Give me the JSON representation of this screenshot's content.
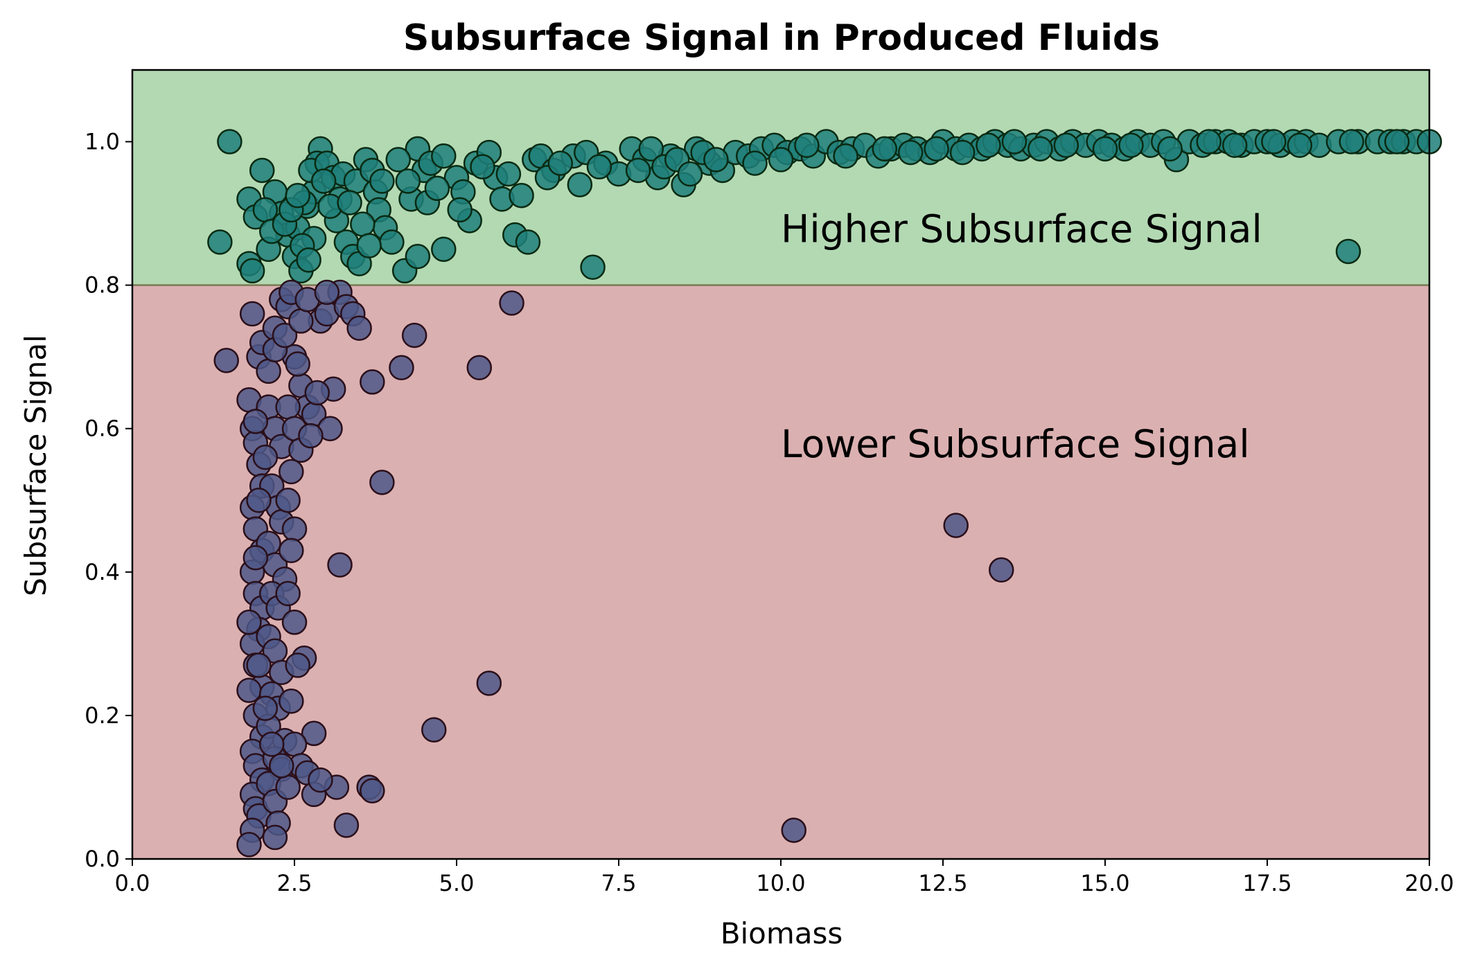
{
  "chart_data": {
    "type": "scatter",
    "title": "Subsurface Signal in Produced Fluids",
    "xlabel": "Biomass",
    "ylabel": "Subsurface Signal",
    "xlim": [
      0,
      20
    ],
    "ylim": [
      0,
      1.1
    ],
    "x_ticks": [
      "0.0",
      "2.5",
      "5.0",
      "7.5",
      "10.0",
      "12.5",
      "15.0",
      "17.5",
      "20.0"
    ],
    "y_ticks": [
      "0.0",
      "0.2",
      "0.4",
      "0.6",
      "0.8",
      "1.0"
    ],
    "threshold": 0.8,
    "grid": false,
    "regions": [
      {
        "label": "Higher Subsurface Signal",
        "y_from": 0.8,
        "y_to": 1.1,
        "color": "#b3d9b3",
        "label_x": 10.0,
        "label_y": 0.86
      },
      {
        "label": "Lower Subsurface Signal",
        "y_from": 0.0,
        "y_to": 0.8,
        "color": "#dbb0b1",
        "label_x": 10.0,
        "label_y": 0.56
      }
    ],
    "colors": {
      "high_fill": "#1f7f7a",
      "high_edge": "#0a2a12",
      "low_fill": "#4e5888",
      "low_edge": "#2a0f1a",
      "threshold_line": "#7a7a52"
    },
    "series": [
      {
        "group": "high",
        "points": [
          [
            1.5,
            1.0
          ],
          [
            1.35,
            0.86
          ],
          [
            2.0,
            0.96
          ],
          [
            1.8,
            0.92
          ],
          [
            1.9,
            0.895
          ],
          [
            2.1,
            0.85
          ],
          [
            1.8,
            0.83
          ],
          [
            1.85,
            0.82
          ],
          [
            2.2,
            0.93
          ],
          [
            2.3,
            0.9
          ],
          [
            2.4,
            0.87
          ],
          [
            2.5,
            0.84
          ],
          [
            2.6,
            0.82
          ],
          [
            2.55,
            0.88
          ],
          [
            2.7,
            0.91
          ],
          [
            2.8,
            0.93
          ],
          [
            2.9,
            0.99
          ],
          [
            2.85,
            0.97
          ],
          [
            2.75,
            0.96
          ],
          [
            3.0,
            0.97
          ],
          [
            3.1,
            0.95
          ],
          [
            3.2,
            0.92
          ],
          [
            3.15,
            0.89
          ],
          [
            3.3,
            0.86
          ],
          [
            3.4,
            0.84
          ],
          [
            3.5,
            0.83
          ],
          [
            2.65,
            0.915
          ],
          [
            2.8,
            0.865
          ],
          [
            3.05,
            0.91
          ],
          [
            3.25,
            0.955
          ],
          [
            3.45,
            0.945
          ],
          [
            3.6,
            0.975
          ],
          [
            3.7,
            0.96
          ],
          [
            3.75,
            0.93
          ],
          [
            3.8,
            0.905
          ],
          [
            3.9,
            0.88
          ],
          [
            4.0,
            0.86
          ],
          [
            4.2,
            0.82
          ],
          [
            4.4,
            0.84
          ],
          [
            4.8,
            0.85
          ],
          [
            4.3,
            0.92
          ],
          [
            4.5,
            0.96
          ],
          [
            4.4,
            0.99
          ],
          [
            4.6,
            0.97
          ],
          [
            4.8,
            0.98
          ],
          [
            5.0,
            0.95
          ],
          [
            5.1,
            0.93
          ],
          [
            5.2,
            0.89
          ],
          [
            5.3,
            0.97
          ],
          [
            5.5,
            0.985
          ],
          [
            5.6,
            0.95
          ],
          [
            5.7,
            0.92
          ],
          [
            5.9,
            0.87
          ],
          [
            6.1,
            0.86
          ],
          [
            6.0,
            0.925
          ],
          [
            6.2,
            0.975
          ],
          [
            6.3,
            0.98
          ],
          [
            6.5,
            0.96
          ],
          [
            6.8,
            0.98
          ],
          [
            7.0,
            0.985
          ],
          [
            7.1,
            0.825
          ],
          [
            6.9,
            0.94
          ],
          [
            7.3,
            0.97
          ],
          [
            7.5,
            0.955
          ],
          [
            7.7,
            0.99
          ],
          [
            7.9,
            0.975
          ],
          [
            8.1,
            0.95
          ],
          [
            8.3,
            0.98
          ],
          [
            8.5,
            0.94
          ],
          [
            8.7,
            0.99
          ],
          [
            8.9,
            0.97
          ],
          [
            9.1,
            0.96
          ],
          [
            9.3,
            0.985
          ],
          [
            9.5,
            0.98
          ],
          [
            9.7,
            0.99
          ],
          [
            9.9,
            0.995
          ],
          [
            10.1,
            0.985
          ],
          [
            10.3,
            0.99
          ],
          [
            10.5,
            0.98
          ],
          [
            10.7,
            1.0
          ],
          [
            10.9,
            0.985
          ],
          [
            11.1,
            0.99
          ],
          [
            11.3,
            0.995
          ],
          [
            11.5,
            0.98
          ],
          [
            11.7,
            0.99
          ],
          [
            11.9,
            0.995
          ],
          [
            12.1,
            0.99
          ],
          [
            12.3,
            0.985
          ],
          [
            12.5,
            1.0
          ],
          [
            12.7,
            0.99
          ],
          [
            12.9,
            0.995
          ],
          [
            13.1,
            0.99
          ],
          [
            13.3,
            1.0
          ],
          [
            13.5,
            0.995
          ],
          [
            13.7,
            0.99
          ],
          [
            13.9,
            0.995
          ],
          [
            14.1,
            1.0
          ],
          [
            14.3,
            0.99
          ],
          [
            14.5,
            1.0
          ],
          [
            14.7,
            0.995
          ],
          [
            14.9,
            1.0
          ],
          [
            15.1,
            0.995
          ],
          [
            15.3,
            0.99
          ],
          [
            15.5,
            1.0
          ],
          [
            15.7,
            0.995
          ],
          [
            15.9,
            1.0
          ],
          [
            16.1,
            0.975
          ],
          [
            16.3,
            1.0
          ],
          [
            16.5,
            0.995
          ],
          [
            16.7,
            1.0
          ],
          [
            16.9,
            1.0
          ],
          [
            17.1,
            0.995
          ],
          [
            17.3,
            1.0
          ],
          [
            17.5,
            1.0
          ],
          [
            17.7,
            0.995
          ],
          [
            17.9,
            1.0
          ],
          [
            18.1,
            1.0
          ],
          [
            18.3,
            0.995
          ],
          [
            18.6,
            1.0
          ],
          [
            18.75,
            0.847
          ],
          [
            18.9,
            1.0
          ],
          [
            19.2,
            1.0
          ],
          [
            19.4,
            1.0
          ],
          [
            19.6,
            1.0
          ],
          [
            19.8,
            1.0
          ],
          [
            20.0,
            1.0
          ],
          [
            2.05,
            0.905
          ],
          [
            2.15,
            0.875
          ],
          [
            2.35,
            0.885
          ],
          [
            2.45,
            0.905
          ],
          [
            2.55,
            0.925
          ],
          [
            2.62,
            0.855
          ],
          [
            2.72,
            0.835
          ],
          [
            2.95,
            0.945
          ],
          [
            3.35,
            0.915
          ],
          [
            3.55,
            0.885
          ],
          [
            3.65,
            0.855
          ],
          [
            3.85,
            0.945
          ],
          [
            4.1,
            0.975
          ],
          [
            4.25,
            0.945
          ],
          [
            4.55,
            0.915
          ],
          [
            4.7,
            0.935
          ],
          [
            5.05,
            0.905
          ],
          [
            5.4,
            0.965
          ],
          [
            5.8,
            0.955
          ],
          [
            6.4,
            0.95
          ],
          [
            6.6,
            0.97
          ],
          [
            7.2,
            0.965
          ],
          [
            7.8,
            0.96
          ],
          [
            8.0,
            0.99
          ],
          [
            8.2,
            0.965
          ],
          [
            8.4,
            0.975
          ],
          [
            8.6,
            0.955
          ],
          [
            8.8,
            0.985
          ],
          [
            9.0,
            0.975
          ],
          [
            9.6,
            0.97
          ],
          [
            10.0,
            0.975
          ],
          [
            10.4,
            0.995
          ],
          [
            11.0,
            0.98
          ],
          [
            11.6,
            0.99
          ],
          [
            12.0,
            0.985
          ],
          [
            12.4,
            0.99
          ],
          [
            12.8,
            0.985
          ],
          [
            13.2,
            0.995
          ],
          [
            13.6,
            1.0
          ],
          [
            14.0,
            0.99
          ],
          [
            14.4,
            0.995
          ],
          [
            15.0,
            0.99
          ],
          [
            15.4,
            0.995
          ],
          [
            16.0,
            0.99
          ],
          [
            16.6,
            1.0
          ],
          [
            17.0,
            0.995
          ],
          [
            17.6,
            1.0
          ],
          [
            18.0,
            0.995
          ],
          [
            18.8,
            1.0
          ],
          [
            19.5,
            1.0
          ]
        ]
      },
      {
        "group": "low",
        "points": [
          [
            1.45,
            0.695
          ],
          [
            1.95,
            0.7
          ],
          [
            1.85,
            0.76
          ],
          [
            2.0,
            0.72
          ],
          [
            2.1,
            0.68
          ],
          [
            2.2,
            0.74
          ],
          [
            2.3,
            0.78
          ],
          [
            2.4,
            0.77
          ],
          [
            2.5,
            0.7
          ],
          [
            2.6,
            0.66
          ],
          [
            2.7,
            0.63
          ],
          [
            2.8,
            0.62
          ],
          [
            2.9,
            0.75
          ],
          [
            3.0,
            0.76
          ],
          [
            3.1,
            0.655
          ],
          [
            3.05,
            0.6
          ],
          [
            3.2,
            0.79
          ],
          [
            3.3,
            0.77
          ],
          [
            3.4,
            0.76
          ],
          [
            3.5,
            0.74
          ],
          [
            3.7,
            0.665
          ],
          [
            4.15,
            0.685
          ],
          [
            4.35,
            0.73
          ],
          [
            5.35,
            0.685
          ],
          [
            5.85,
            0.775
          ],
          [
            3.85,
            0.525
          ],
          [
            3.2,
            0.41
          ],
          [
            2.8,
            0.175
          ],
          [
            2.65,
            0.28
          ],
          [
            4.65,
            0.18
          ],
          [
            5.5,
            0.245
          ],
          [
            3.3,
            0.047
          ],
          [
            3.65,
            0.1
          ],
          [
            3.7,
            0.095
          ],
          [
            3.15,
            0.1
          ],
          [
            10.2,
            0.04
          ],
          [
            12.7,
            0.465
          ],
          [
            13.4,
            0.403
          ],
          [
            1.8,
            0.64
          ],
          [
            1.85,
            0.6
          ],
          [
            1.9,
            0.58
          ],
          [
            1.95,
            0.55
          ],
          [
            2.0,
            0.52
          ],
          [
            1.85,
            0.49
          ],
          [
            1.9,
            0.46
          ],
          [
            2.0,
            0.43
          ],
          [
            1.85,
            0.4
          ],
          [
            1.9,
            0.37
          ],
          [
            2.0,
            0.35
          ],
          [
            1.95,
            0.32
          ],
          [
            1.85,
            0.3
          ],
          [
            1.9,
            0.27
          ],
          [
            2.0,
            0.24
          ],
          [
            1.8,
            0.235
          ],
          [
            1.9,
            0.2
          ],
          [
            2.0,
            0.17
          ],
          [
            1.85,
            0.15
          ],
          [
            1.9,
            0.13
          ],
          [
            2.0,
            0.11
          ],
          [
            1.85,
            0.09
          ],
          [
            1.9,
            0.07
          ],
          [
            1.95,
            0.06
          ],
          [
            1.85,
            0.04
          ],
          [
            1.8,
            0.02
          ],
          [
            2.1,
            0.63
          ],
          [
            2.2,
            0.6
          ],
          [
            2.3,
            0.575
          ],
          [
            2.15,
            0.52
          ],
          [
            2.25,
            0.49
          ],
          [
            2.3,
            0.47
          ],
          [
            2.1,
            0.44
          ],
          [
            2.2,
            0.41
          ],
          [
            2.35,
            0.39
          ],
          [
            2.15,
            0.37
          ],
          [
            2.25,
            0.35
          ],
          [
            2.1,
            0.31
          ],
          [
            2.2,
            0.29
          ],
          [
            2.3,
            0.26
          ],
          [
            2.15,
            0.23
          ],
          [
            2.25,
            0.21
          ],
          [
            2.1,
            0.185
          ],
          [
            2.35,
            0.165
          ],
          [
            2.2,
            0.14
          ],
          [
            2.3,
            0.125
          ],
          [
            2.1,
            0.105
          ],
          [
            2.2,
            0.08
          ],
          [
            2.25,
            0.05
          ],
          [
            2.2,
            0.03
          ],
          [
            2.4,
            0.63
          ],
          [
            2.5,
            0.6
          ],
          [
            2.6,
            0.57
          ],
          [
            2.45,
            0.54
          ],
          [
            2.4,
            0.5
          ],
          [
            2.5,
            0.46
          ],
          [
            2.45,
            0.43
          ],
          [
            2.4,
            0.37
          ],
          [
            2.5,
            0.33
          ],
          [
            2.55,
            0.27
          ],
          [
            2.45,
            0.22
          ],
          [
            2.5,
            0.16
          ],
          [
            2.6,
            0.13
          ],
          [
            2.7,
            0.12
          ],
          [
            2.8,
            0.09
          ],
          [
            2.9,
            0.11
          ],
          [
            2.4,
            0.1
          ],
          [
            2.3,
            0.13
          ],
          [
            2.15,
            0.16
          ],
          [
            2.05,
            0.21
          ],
          [
            1.95,
            0.27
          ],
          [
            1.8,
            0.33
          ],
          [
            1.9,
            0.42
          ],
          [
            1.95,
            0.5
          ],
          [
            2.05,
            0.56
          ],
          [
            1.9,
            0.61
          ],
          [
            2.2,
            0.71
          ],
          [
            2.35,
            0.73
          ],
          [
            2.55,
            0.69
          ],
          [
            2.75,
            0.59
          ],
          [
            2.85,
            0.65
          ],
          [
            2.6,
            0.75
          ],
          [
            2.45,
            0.79
          ],
          [
            2.7,
            0.78
          ],
          [
            3.0,
            0.79
          ]
        ]
      }
    ]
  }
}
